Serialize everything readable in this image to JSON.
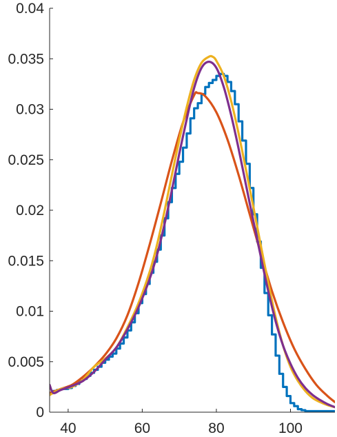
{
  "chart_data": {
    "type": "line",
    "title": "",
    "xlabel": "",
    "ylabel": "",
    "xlim": [
      35,
      112
    ],
    "ylim": [
      0,
      0.04
    ],
    "x_ticks": [
      40,
      60,
      80,
      100
    ],
    "x_tick_labels": [
      "40",
      "60",
      "80",
      "100"
    ],
    "y_ticks": [
      0,
      0.005,
      0.01,
      0.015,
      0.02,
      0.025,
      0.03,
      0.035,
      0.04
    ],
    "y_tick_labels": [
      "0",
      "0.005",
      "0.01",
      "0.015",
      "0.02",
      "0.025",
      "0.03",
      "0.035",
      "0.04"
    ],
    "grid": false,
    "legend": "none",
    "series": [
      {
        "style": "stairs",
        "color": "#0072BD",
        "bin_width": 1,
        "x": [
          35,
          36,
          37,
          38,
          39,
          40,
          41,
          42,
          43,
          44,
          45,
          46,
          47,
          48,
          49,
          50,
          51,
          52,
          53,
          54,
          55,
          56,
          57,
          58,
          59,
          60,
          61,
          62,
          63,
          64,
          65,
          66,
          67,
          68,
          69,
          70,
          71,
          72,
          73,
          74,
          75,
          76,
          77,
          78,
          79,
          80,
          81,
          82,
          83,
          84,
          85,
          86,
          87,
          88,
          89,
          90,
          91,
          92,
          93,
          94,
          95,
          96,
          97,
          98,
          99,
          100,
          101,
          102,
          103,
          104,
          105,
          106,
          107,
          108,
          109,
          110,
          111,
          112
        ],
        "values": [
          0.0019,
          0.0021,
          0.0022,
          0.0023,
          0.0023,
          0.0024,
          0.0026,
          0.0028,
          0.0031,
          0.0033,
          0.0036,
          0.0039,
          0.0042,
          0.0045,
          0.0049,
          0.0052,
          0.0055,
          0.0058,
          0.0063,
          0.0068,
          0.0074,
          0.0081,
          0.0089,
          0.0098,
          0.0108,
          0.0117,
          0.0127,
          0.0138,
          0.0149,
          0.0161,
          0.0175,
          0.0192,
          0.0208,
          0.0222,
          0.0236,
          0.0248,
          0.0262,
          0.0276,
          0.0291,
          0.0301,
          0.0306,
          0.0315,
          0.0322,
          0.0326,
          0.0329,
          0.0333,
          0.0335,
          0.0333,
          0.0327,
          0.0318,
          0.0305,
          0.0288,
          0.0269,
          0.0246,
          0.0222,
          0.0196,
          0.0169,
          0.0143,
          0.0118,
          0.0096,
          0.0077,
          0.0056,
          0.0038,
          0.0025,
          0.0016,
          0.0009,
          0.0006,
          0.0003,
          0.0002,
          0.0001,
          0.0001,
          0.0001,
          0.0001,
          0.0001,
          0.0001,
          0.0001,
          0.0001,
          0.0001
        ]
      },
      {
        "color": "#D95319",
        "x": [
          35,
          38,
          41,
          44,
          47,
          50,
          53,
          56,
          59,
          62,
          65,
          68,
          71,
          74,
          75,
          77,
          80,
          83,
          86,
          89,
          92,
          95,
          98,
          101,
          104,
          107,
          110,
          112
        ],
        "values": [
          0.0019,
          0.0023,
          0.0027,
          0.0035,
          0.0045,
          0.0057,
          0.0073,
          0.0096,
          0.0128,
          0.0166,
          0.0207,
          0.0249,
          0.0287,
          0.0314,
          0.0316,
          0.0313,
          0.0297,
          0.027,
          0.0235,
          0.0196,
          0.0157,
          0.012,
          0.0089,
          0.0063,
          0.0043,
          0.0027,
          0.0016,
          0.001
        ]
      },
      {
        "color": "#EDB120",
        "x": [
          35,
          38,
          41,
          44,
          47,
          50,
          53,
          56,
          59,
          62,
          64,
          66,
          68,
          70,
          72,
          74,
          76,
          78,
          79,
          80,
          82,
          84,
          86,
          88,
          90,
          92,
          94,
          96,
          98,
          100,
          102,
          104,
          106,
          108,
          110,
          112
        ],
        "values": [
          0.0017,
          0.0023,
          0.0025,
          0.0032,
          0.0045,
          0.0053,
          0.0064,
          0.0084,
          0.0108,
          0.0139,
          0.0166,
          0.0199,
          0.0235,
          0.027,
          0.0302,
          0.0329,
          0.0346,
          0.0352,
          0.0352,
          0.0348,
          0.0333,
          0.0308,
          0.0276,
          0.024,
          0.0203,
          0.0165,
          0.0128,
          0.0094,
          0.0066,
          0.0045,
          0.0031,
          0.0021,
          0.0014,
          0.001,
          0.0007,
          0.0005
        ]
      },
      {
        "color": "#7E2F8E",
        "x": [
          35,
          36,
          38,
          41,
          44,
          47,
          50,
          53,
          56,
          59,
          62,
          64,
          66,
          68,
          70,
          72,
          74,
          76,
          78,
          80,
          82,
          84,
          86,
          88,
          90,
          92,
          94,
          96,
          98,
          100,
          102,
          104,
          106,
          108,
          110,
          112
        ],
        "values": [
          0.0027,
          0.0019,
          0.0022,
          0.0026,
          0.0031,
          0.004,
          0.0052,
          0.0064,
          0.0082,
          0.0104,
          0.0132,
          0.0156,
          0.0186,
          0.022,
          0.0256,
          0.029,
          0.0321,
          0.0341,
          0.0347,
          0.0341,
          0.0322,
          0.0294,
          0.0261,
          0.0225,
          0.0189,
          0.0154,
          0.012,
          0.009,
          0.0066,
          0.0048,
          0.0034,
          0.0024,
          0.0017,
          0.0012,
          0.0008,
          0.0005
        ]
      }
    ]
  }
}
